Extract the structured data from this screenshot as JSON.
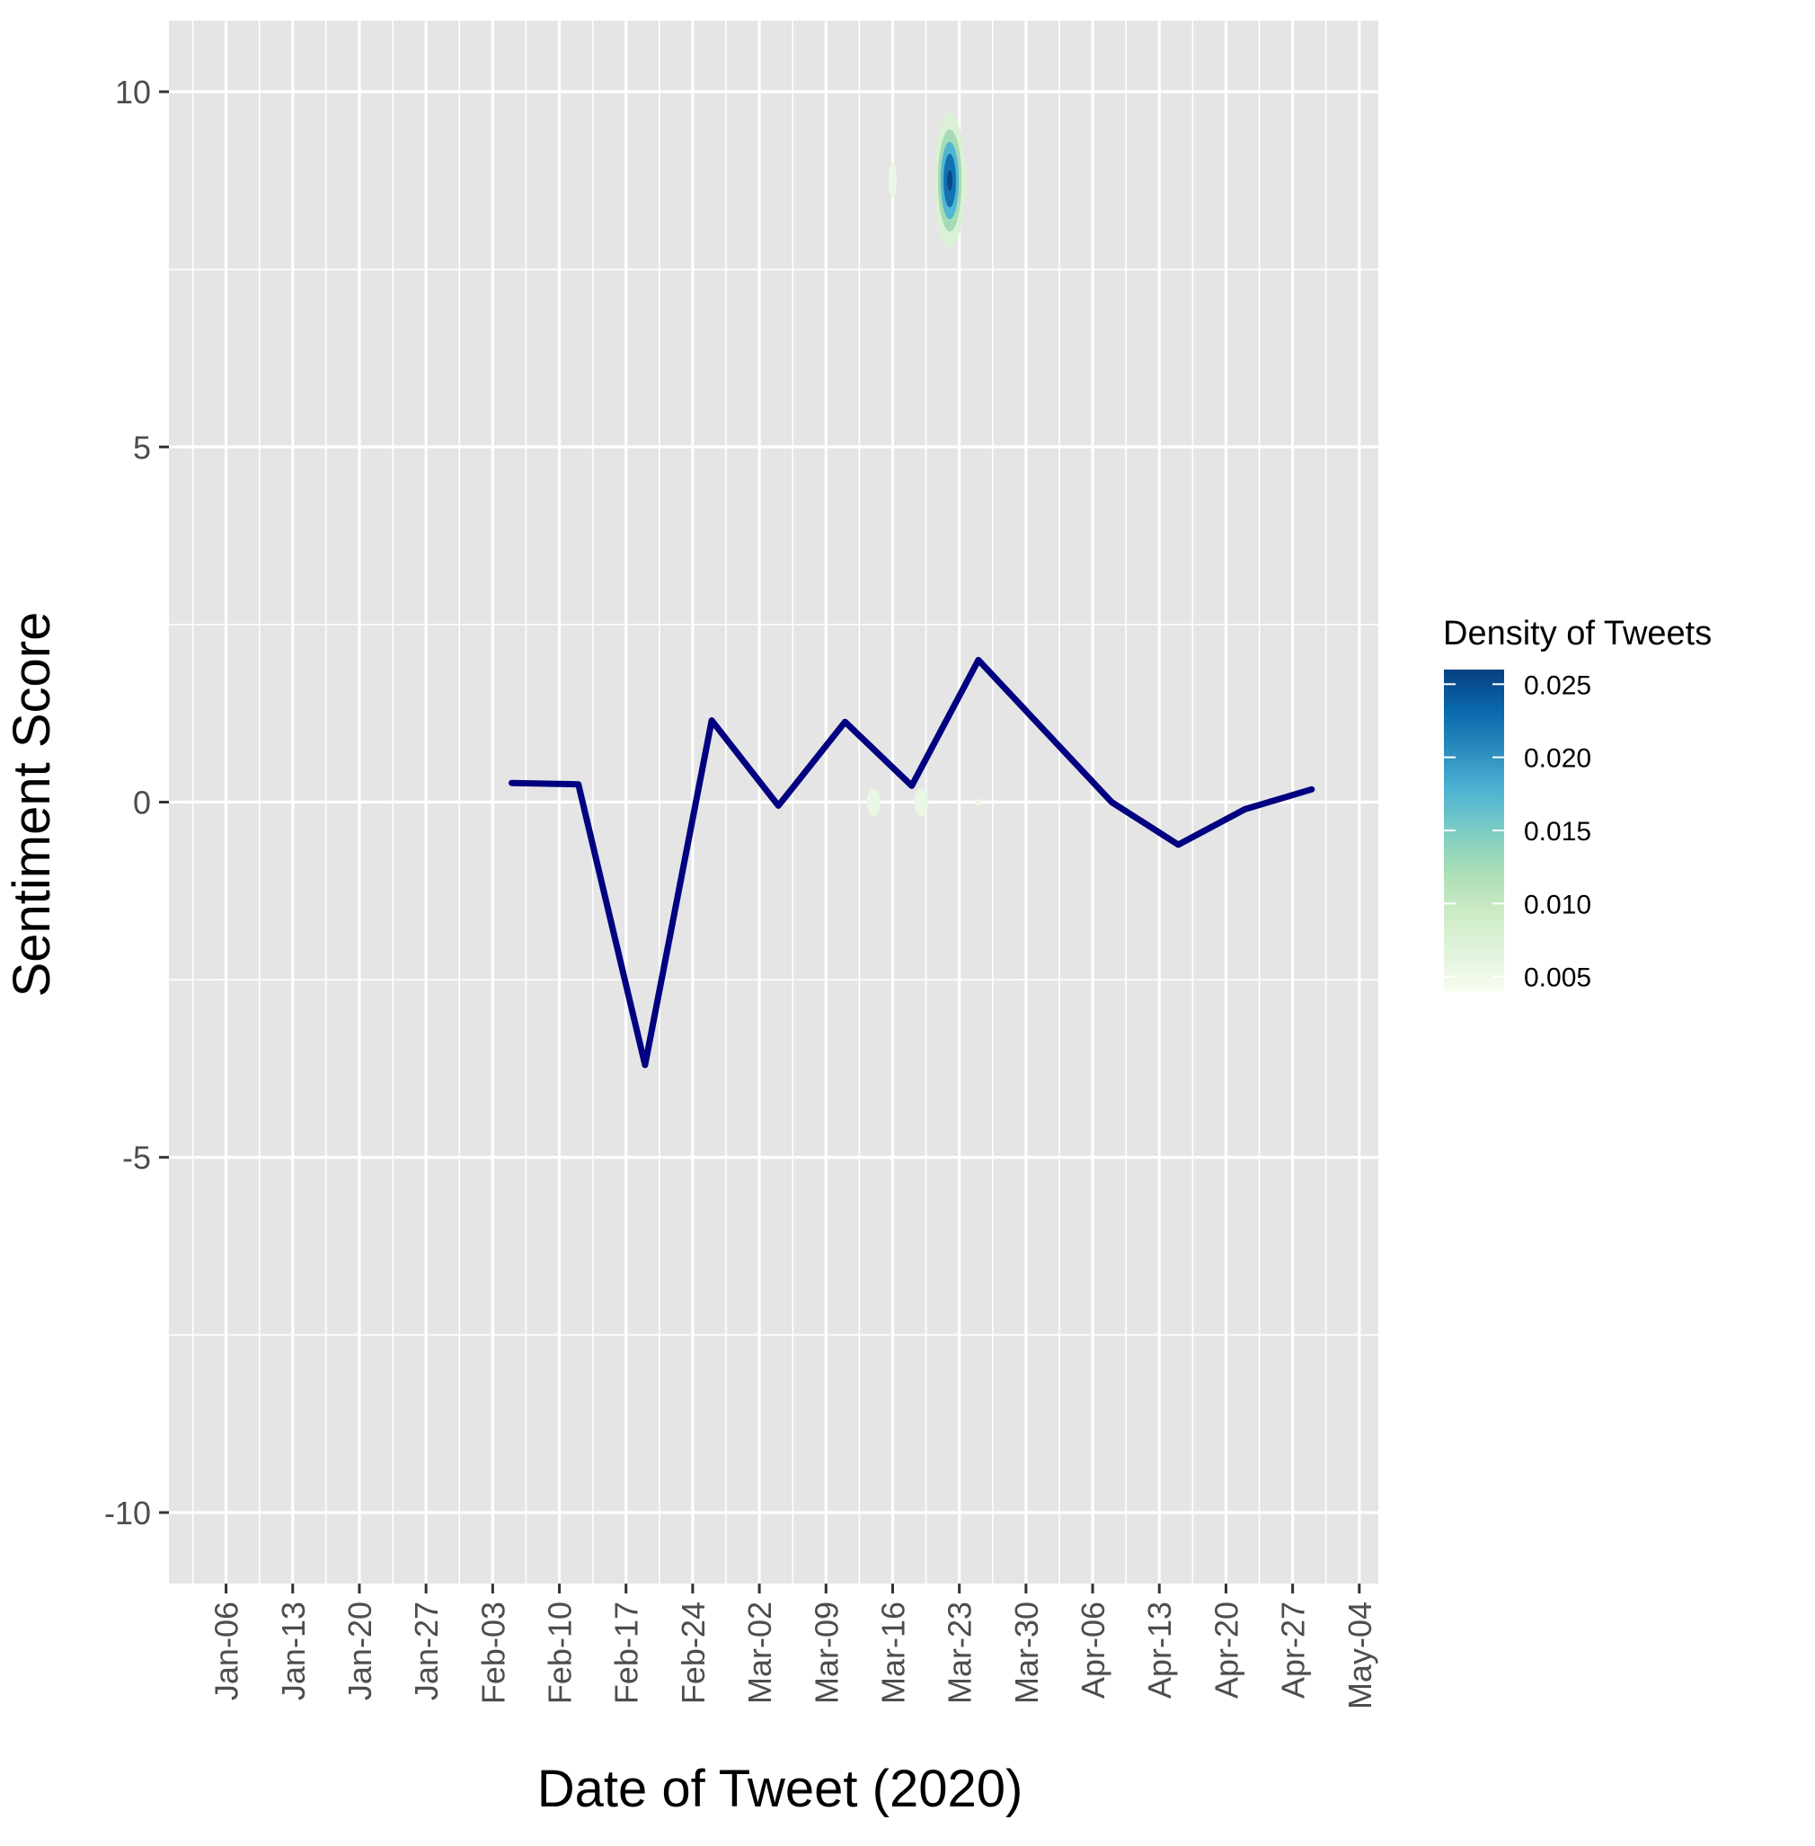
{
  "chart_data": {
    "type": "line",
    "xlabel": "Date of Tweet (2020)",
    "ylabel": "Sentiment Score",
    "x_tick_labels": [
      "Jan-06",
      "Jan-13",
      "Jan-20",
      "Jan-27",
      "Feb-03",
      "Feb-10",
      "Feb-17",
      "Feb-24",
      "Mar-02",
      "Mar-09",
      "Mar-16",
      "Mar-23",
      "Mar-30",
      "Apr-06",
      "Apr-13",
      "Apr-20",
      "Apr-27",
      "May-04"
    ],
    "x_tick_dates": [
      "2020-01-06",
      "2020-01-13",
      "2020-01-20",
      "2020-01-27",
      "2020-02-03",
      "2020-02-10",
      "2020-02-17",
      "2020-02-24",
      "2020-03-02",
      "2020-03-09",
      "2020-03-16",
      "2020-03-23",
      "2020-03-30",
      "2020-04-06",
      "2020-04-13",
      "2020-04-20",
      "2020-04-27",
      "2020-05-04"
    ],
    "xlim": [
      "2019-12-31",
      "2020-05-06"
    ],
    "y_ticks": [
      -10,
      -5,
      0,
      5,
      10
    ],
    "ylim": [
      -11,
      11
    ],
    "grid": true,
    "series": [
      {
        "color": "#000080",
        "x": [
          "2020-02-05",
          "2020-02-12",
          "2020-02-19",
          "2020-02-26",
          "2020-03-04",
          "2020-03-11",
          "2020-03-18",
          "2020-03-25",
          "2020-04-01",
          "2020-04-08",
          "2020-04-15",
          "2020-04-22",
          "2020-04-29"
        ],
        "y": [
          0.27,
          0.25,
          -3.7,
          1.15,
          -0.05,
          1.13,
          0.23,
          2.0,
          1.0,
          0.0,
          -0.6,
          -0.1,
          0.18
        ]
      }
    ],
    "density": {
      "blobs": [
        {
          "date": "2020-03-16",
          "y": 8.75,
          "peak": 0.006,
          "sd_days": 0.7,
          "sd_y": 0.42
        },
        {
          "date": "2020-03-22",
          "y": 8.75,
          "peak": 0.026,
          "sd_days": 0.9,
          "sd_y": 0.52
        },
        {
          "date": "2020-03-14",
          "y": 0.0,
          "peak": 0.0062,
          "sd_days": 1.1,
          "sd_y": 0.3
        },
        {
          "date": "2020-03-19",
          "y": 0.0,
          "peak": 0.0062,
          "sd_days": 1.1,
          "sd_y": 0.3
        },
        {
          "date": "2020-03-25",
          "y": 0.0,
          "peak": 0.0053,
          "sd_days": 0.35,
          "sd_y": 0.13
        }
      ],
      "contour_levels": [
        0.005,
        0.01,
        0.015,
        0.02,
        0.025
      ]
    },
    "legend": {
      "title": "Density of Tweets",
      "placement": "right",
      "labels": [
        "0.025",
        "0.020",
        "0.015",
        "0.010",
        "0.005"
      ],
      "values": [
        0.025,
        0.02,
        0.015,
        0.01,
        0.005
      ],
      "range": [
        0.004,
        0.026
      ],
      "colors": [
        "#f7fcf0",
        "#e0f3db",
        "#ccebc5",
        "#a8ddb5",
        "#7bccc4",
        "#4eb3d3",
        "#2b8cbe",
        "#0868ac",
        "#084081"
      ]
    },
    "colors": {
      "panel": "#e5e5e5",
      "grid": "#ffffff",
      "line": "#000080"
    }
  }
}
